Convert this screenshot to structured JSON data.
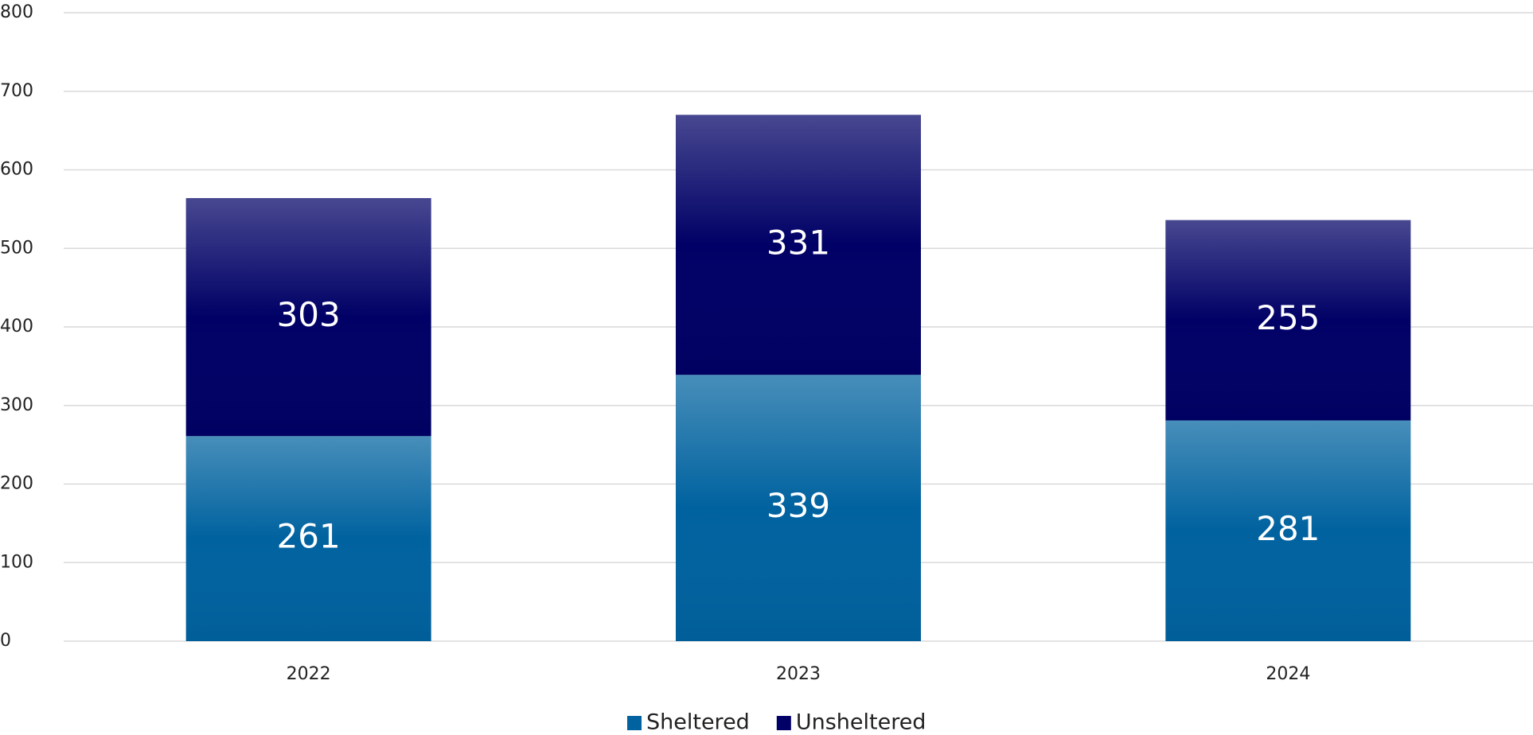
{
  "chart_data": {
    "type": "stacked_bar",
    "categories": [
      "2022",
      "2023",
      "2024"
    ],
    "series": [
      {
        "name": "Sheltered",
        "color": "#00629f",
        "values": [
          261,
          339,
          281
        ]
      },
      {
        "name": "Unsheltered",
        "color": "#000066",
        "values": [
          303,
          331,
          255
        ]
      }
    ],
    "ylim": [
      0,
      800
    ],
    "yticks": [
      0,
      100,
      200,
      300,
      400,
      500,
      600,
      700,
      800
    ],
    "grid": true,
    "legend": "bottom"
  }
}
